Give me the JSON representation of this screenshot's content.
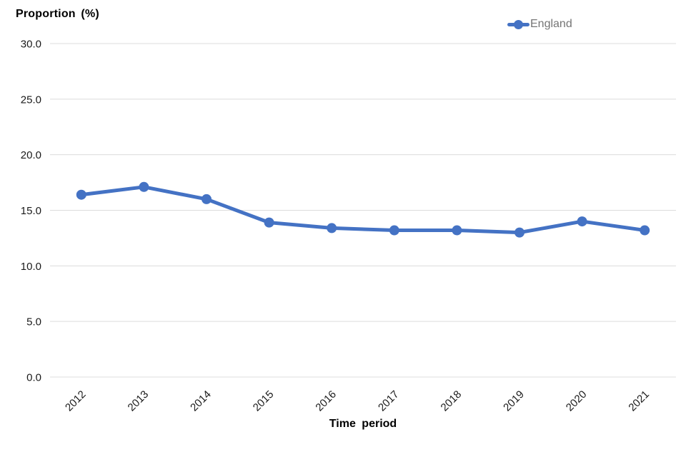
{
  "chart_data": {
    "type": "line",
    "title": "",
    "ylabel": "Proportion (%)",
    "xlabel": "Time period",
    "categories": [
      "2012",
      "2013",
      "2014",
      "2015",
      "2016",
      "2017",
      "2018",
      "2019",
      "2020",
      "2021"
    ],
    "series": [
      {
        "name": "England",
        "color": "#4472C4",
        "values": [
          16.4,
          17.1,
          16.0,
          13.9,
          13.4,
          13.2,
          13.2,
          13.0,
          14.0,
          13.2
        ]
      }
    ],
    "ylim": [
      0,
      30
    ],
    "yticks": [
      "0.0",
      "5.0",
      "10.0",
      "15.0",
      "20.0",
      "25.0",
      "30.0"
    ],
    "grid": "horizontal",
    "legend_position": "top-right",
    "x_tick_rotation": -45,
    "colors": {
      "gridline": "#dcdcdc",
      "axis_text": "#1a1a1a",
      "legend_text": "#757575",
      "background": "#ffffff"
    }
  }
}
